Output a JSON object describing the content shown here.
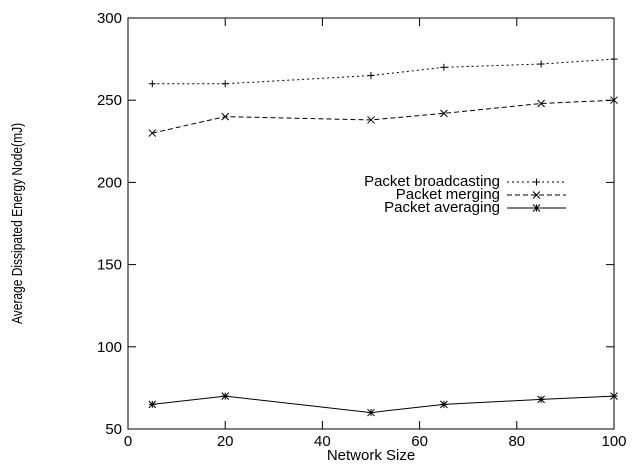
{
  "chart_data": {
    "type": "line",
    "title": "",
    "xlabel": "Network Size",
    "ylabel": "Average Dissipated Energy Node(mJ)",
    "xlim": [
      0,
      100
    ],
    "ylim": [
      50,
      300
    ],
    "xticks": [
      0,
      20,
      40,
      60,
      80,
      100
    ],
    "yticks": [
      50,
      100,
      150,
      200,
      250,
      300
    ],
    "grid": false,
    "legend_position": "middle-right",
    "series": [
      {
        "name": "Packet broadcasting",
        "style": "dotted",
        "marker": "plus",
        "color": "#000000",
        "x": [
          5,
          20,
          50,
          65,
          85,
          100
        ],
        "y": [
          260,
          260,
          265,
          270,
          272,
          275
        ]
      },
      {
        "name": "Packet merging",
        "style": "dashed",
        "marker": "cross",
        "color": "#000000",
        "x": [
          5,
          20,
          50,
          65,
          85,
          100
        ],
        "y": [
          230,
          240,
          238,
          242,
          248,
          250
        ]
      },
      {
        "name": "Packet averaging",
        "style": "solid",
        "marker": "star",
        "color": "#000000",
        "x": [
          5,
          20,
          50,
          65,
          85,
          100
        ],
        "y": [
          65,
          70,
          60,
          65,
          68,
          70
        ]
      }
    ]
  }
}
